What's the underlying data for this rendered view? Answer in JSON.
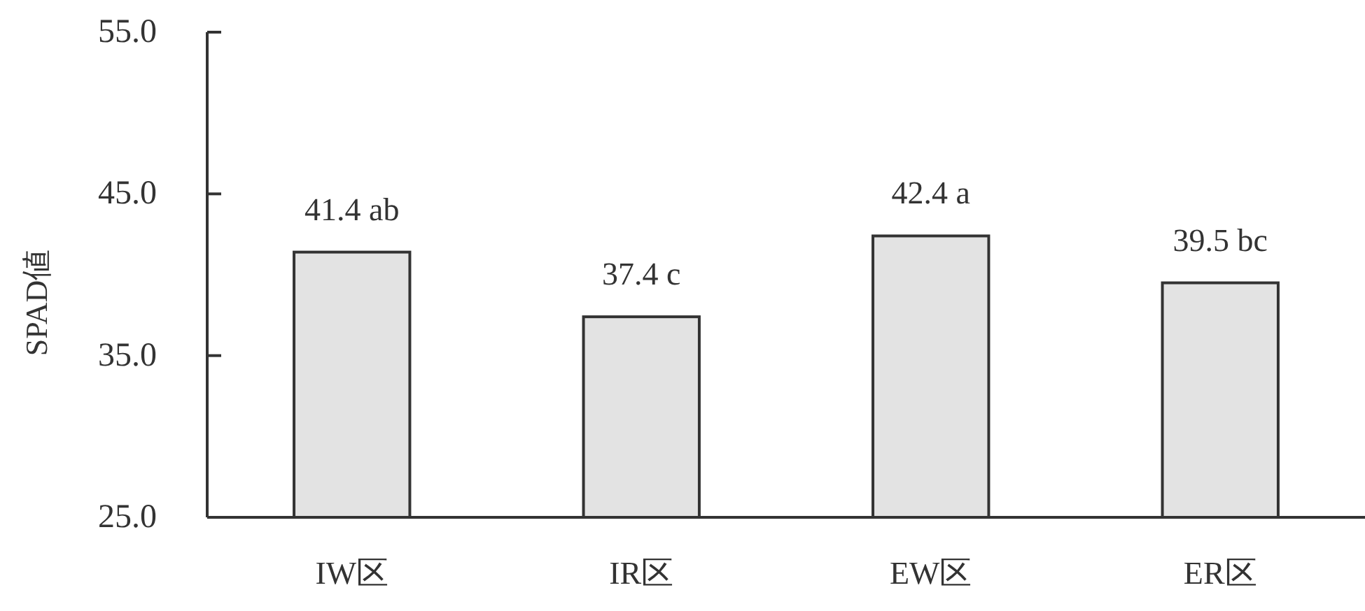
{
  "chart_data": {
    "type": "bar",
    "ylabel": "SPAD値",
    "categories": [
      "IW区",
      "IR区",
      "EW区",
      "ER区"
    ],
    "values": [
      41.4,
      37.4,
      42.4,
      39.5
    ],
    "value_labels": [
      "41.4 ab",
      "37.4 c",
      "42.4 a",
      "39.5 bc"
    ],
    "color": "#e3e3e3",
    "ylim": [
      25,
      55
    ],
    "yticks": [
      {
        "value": 25,
        "label": "25.0"
      },
      {
        "value": 35,
        "label": "35.0"
      },
      {
        "value": 45,
        "label": "45.0"
      },
      {
        "value": 55,
        "label": "55.0"
      }
    ]
  }
}
